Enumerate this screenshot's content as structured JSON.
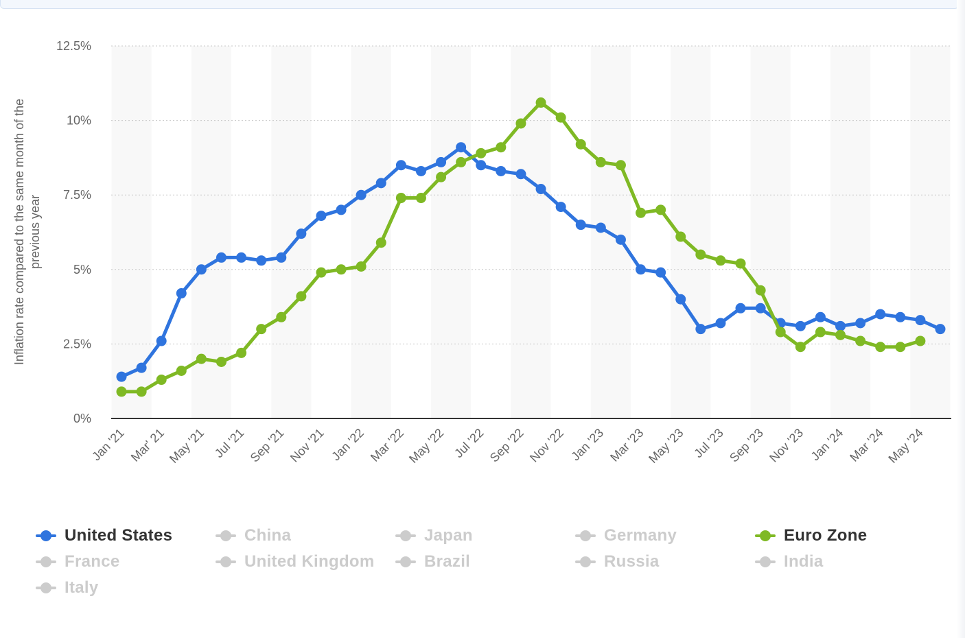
{
  "chart_data": {
    "type": "line",
    "title": "",
    "xlabel": "",
    "ylabel": "Inflation rate compared to the same month of the previous year",
    "ylim": [
      0,
      12.5
    ],
    "yticks": [
      "0%",
      "2.5%",
      "5%",
      "7.5%",
      "10%",
      "12.5%"
    ],
    "grid": true,
    "legend_position": "bottom",
    "x": [
      "Jan '21",
      "Feb '21",
      "Mar' 21",
      "Apr '21",
      "May '21",
      "Jun '21",
      "Jul '21",
      "Aug '21",
      "Sep '21",
      "Oct '21",
      "Nov '21",
      "Dec '21",
      "Jan '22",
      "Feb '22",
      "Mar '22",
      "Apr '22",
      "May '22",
      "Jun '22",
      "Jul '22",
      "Aug '22",
      "Sep '22",
      "Oct '22",
      "Nov '22",
      "Dec '22",
      "Jan '23",
      "Feb '23",
      "Mar '23",
      "Apr '23",
      "May '23",
      "Jun '23",
      "Jul '23",
      "Aug '23",
      "Sep '23",
      "Oct '23",
      "Nov '23",
      "Dec '23",
      "Jan '24",
      "Feb '24",
      "Mar '24",
      "Apr '24",
      "May '24",
      "Jun '24"
    ],
    "x_tick_labels": [
      "Jan '21",
      "Mar' 21",
      "May '21",
      "Jul '21",
      "Sep '21",
      "Nov '21",
      "Jan '22",
      "Mar '22",
      "May '22",
      "Jul '22",
      "Sep '22",
      "Nov '22",
      "Jan '23",
      "Mar '23",
      "May '23",
      "Jul '23",
      "Sep '23",
      "Nov '23",
      "Jan '24",
      "Mar '24",
      "May '24"
    ],
    "series": [
      {
        "name": "United States",
        "color": "#2f74de",
        "values": [
          1.4,
          1.7,
          2.6,
          4.2,
          5.0,
          5.4,
          5.4,
          5.3,
          5.4,
          6.2,
          6.8,
          7.0,
          7.5,
          7.9,
          8.5,
          8.3,
          8.6,
          9.1,
          8.5,
          8.3,
          8.2,
          7.7,
          7.1,
          6.5,
          6.4,
          6.0,
          5.0,
          4.9,
          4.0,
          3.0,
          3.2,
          3.7,
          3.7,
          3.2,
          3.1,
          3.4,
          3.1,
          3.2,
          3.5,
          3.4,
          3.3,
          3.0
        ]
      },
      {
        "name": "Euro Zone",
        "color": "#7fb924",
        "values": [
          0.9,
          0.9,
          1.3,
          1.6,
          2.0,
          1.9,
          2.2,
          3.0,
          3.4,
          4.1,
          4.9,
          5.0,
          5.1,
          5.9,
          7.4,
          7.4,
          8.1,
          8.6,
          8.9,
          9.1,
          9.9,
          10.6,
          10.1,
          9.2,
          8.6,
          8.5,
          6.9,
          7.0,
          6.1,
          5.5,
          5.3,
          5.2,
          4.3,
          2.9,
          2.4,
          2.9,
          2.8,
          2.6,
          2.4,
          2.4,
          2.6,
          null
        ]
      }
    ]
  },
  "legend": {
    "items": [
      {
        "label": "United States",
        "active": true,
        "color": "#2f74de"
      },
      {
        "label": "China",
        "active": false
      },
      {
        "label": "Japan",
        "active": false
      },
      {
        "label": "Germany",
        "active": false
      },
      {
        "label": "Euro Zone",
        "active": true,
        "color": "#7fb924"
      },
      {
        "label": "France",
        "active": false
      },
      {
        "label": "United Kingdom",
        "active": false
      },
      {
        "label": "Brazil",
        "active": false
      },
      {
        "label": "Russia",
        "active": false
      },
      {
        "label": "India",
        "active": false
      },
      {
        "label": "Italy",
        "active": false
      }
    ]
  }
}
